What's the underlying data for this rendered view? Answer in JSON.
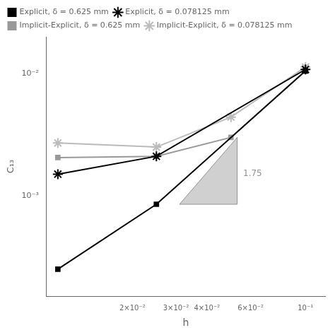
{
  "chart_data": {
    "type": "line",
    "xlabel": "h",
    "ylabel": "C₁₃",
    "log": true,
    "grid": false,
    "legend": "upper left",
    "series": [
      {
        "name": "Explicit, δ = 0.625 mm",
        "color": "#000000",
        "marker": "square",
        "x": [
          0.01,
          0.025,
          0.1
        ],
        "values": [
          0.00025,
          0.00085,
          0.0105
        ]
      },
      {
        "name": "Explicit, δ = 0.078125 mm",
        "color": "#000000",
        "marker": "star",
        "x": [
          0.01,
          0.025,
          0.1
        ],
        "values": [
          0.0015,
          0.0021,
          0.0108
        ]
      },
      {
        "name": "Implicit-Explicit, δ = 0.625 mm",
        "color": "#999999",
        "marker": "square",
        "x": [
          0.01,
          0.025,
          0.05,
          0.1
        ],
        "values": [
          0.00205,
          0.0021,
          0.003,
          0.0105
        ]
      },
      {
        "name": "Implicit-Explicit, δ = 0.078125 mm",
        "color": "#bbbbbb",
        "marker": "star",
        "x": [
          0.01,
          0.025,
          0.05,
          0.1
        ],
        "values": [
          0.0027,
          0.0025,
          0.0044,
          0.0113
        ]
      }
    ],
    "xlim": [
      0.009,
      0.12
    ],
    "ylim": [
      0.00015,
      0.02
    ],
    "xticks": [
      {
        "value": 0.02,
        "label": "2×10⁻²"
      },
      {
        "value": 0.03,
        "label": "3×10⁻²"
      },
      {
        "value": 0.04,
        "label": "4×10⁻²"
      },
      {
        "value": 0.06,
        "label": "6×10⁻²"
      },
      {
        "value": 0.1,
        "label": "10⁻¹"
      }
    ],
    "yticks": [
      {
        "value": 0.001,
        "label": "10⁻³"
      },
      {
        "value": 0.01,
        "label": "10⁻²"
      }
    ],
    "annotations": [
      {
        "type": "polygon",
        "color": "#d0d0d0",
        "x": [
          0.031,
          0.053,
          0.053
        ],
        "y": [
          0.00085,
          0.00085,
          0.003
        ]
      },
      {
        "type": "text",
        "color": "#909090",
        "text": "1.75",
        "x": 0.056,
        "y": 0.0014
      }
    ]
  }
}
